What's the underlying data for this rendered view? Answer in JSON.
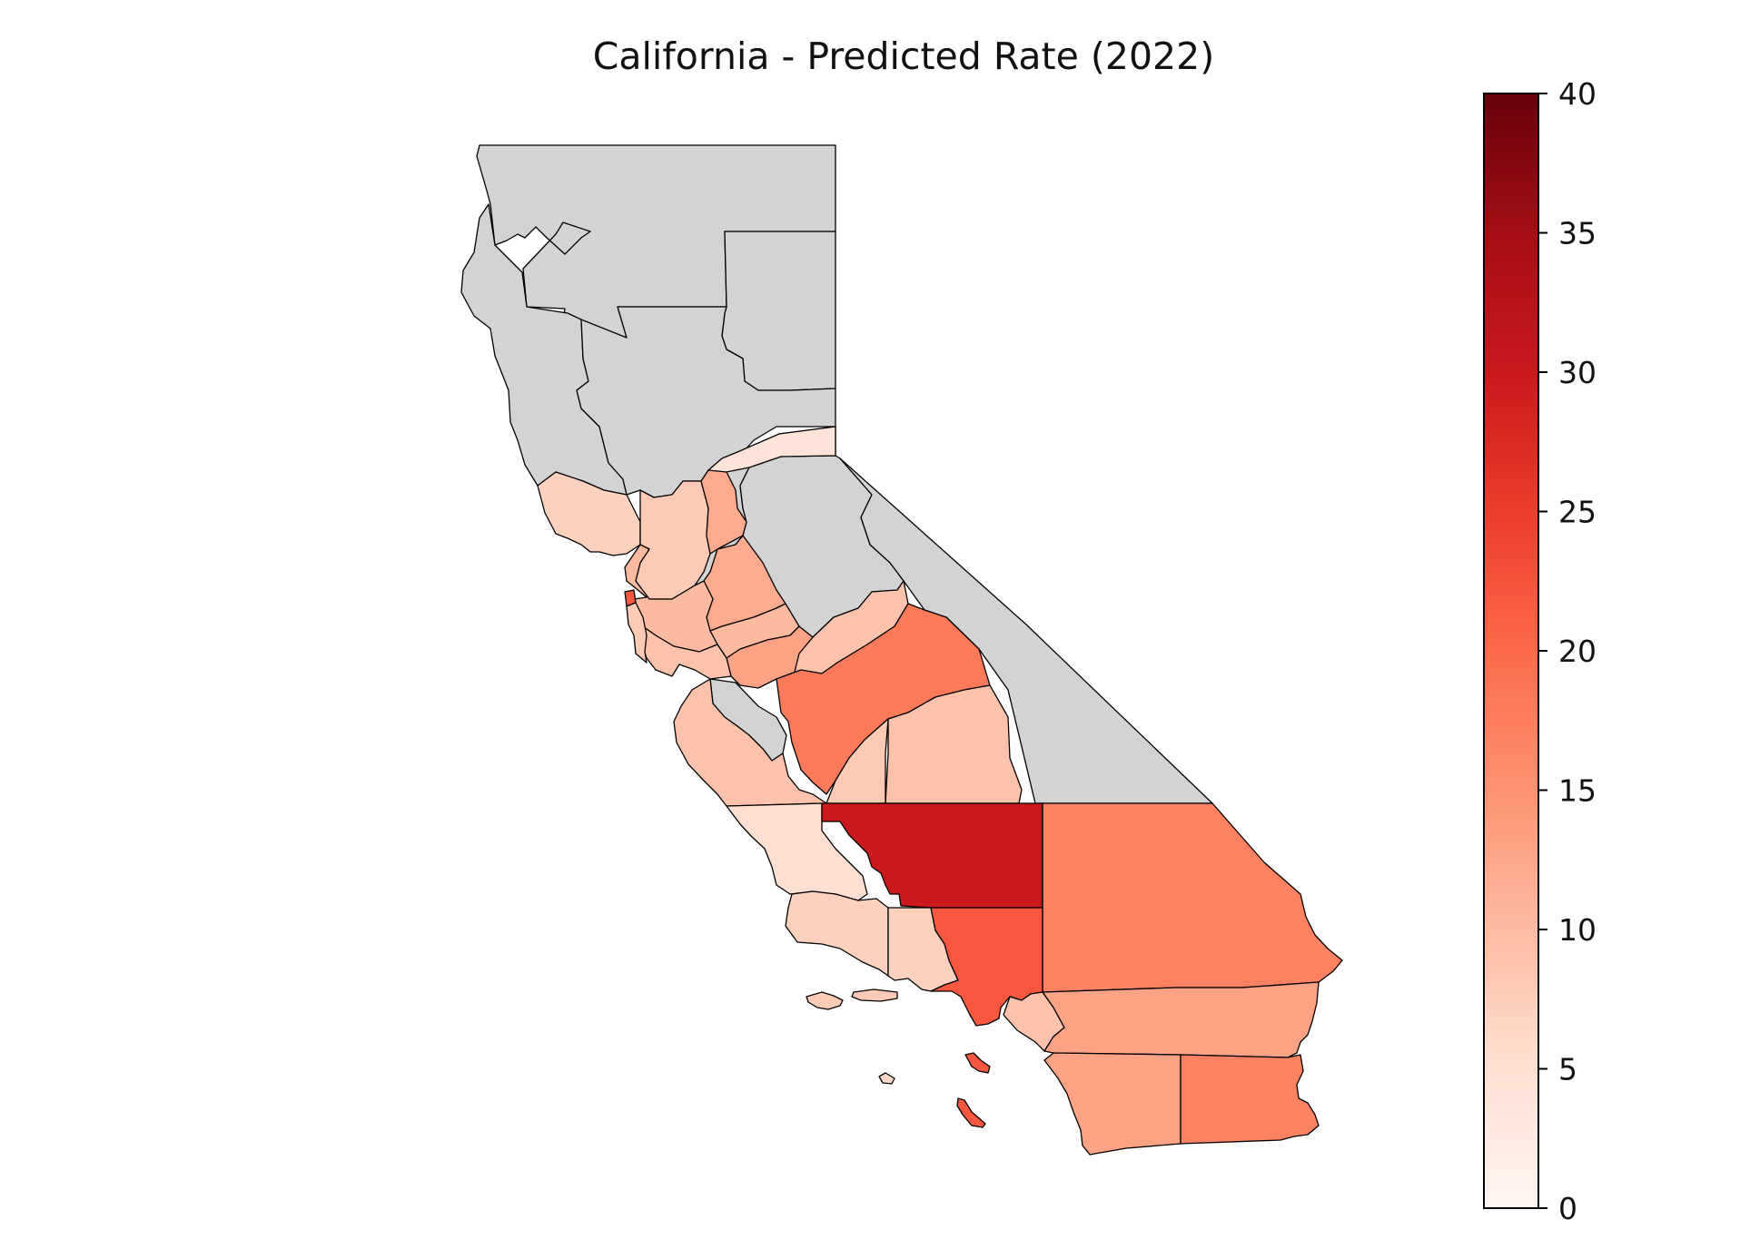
{
  "map": {
    "title": "California - Predicted Rate (2022)",
    "no_data_color": "#d3d3d3",
    "colormap": "Reds",
    "colorbar": {
      "min": 0,
      "max": 40,
      "ticks": [
        "0",
        "5",
        "10",
        "15",
        "20",
        "25",
        "30",
        "35",
        "40"
      ],
      "tick_values": [
        0,
        5,
        10,
        15,
        20,
        25,
        30,
        35,
        40
      ]
    },
    "regions": [
      {
        "id": "far-north",
        "rate": null
      },
      {
        "id": "north-coast",
        "rate": null
      },
      {
        "id": "northeast",
        "rate": null
      },
      {
        "id": "sacramento-valley",
        "rate": null
      },
      {
        "id": "sierra-north",
        "rate": null
      },
      {
        "id": "sierra-central",
        "rate": null
      },
      {
        "id": "east-sierra-desert",
        "rate": null
      },
      {
        "id": "monterey",
        "rate": null
      },
      {
        "id": "el-dorado-corner",
        "rate": 4
      },
      {
        "id": "sonoma-marin",
        "rate": 7
      },
      {
        "id": "yolo-solano",
        "rate": 8
      },
      {
        "id": "sacramento",
        "rate": 12
      },
      {
        "id": "san-joaquin",
        "rate": 12
      },
      {
        "id": "stanislaus",
        "rate": 10
      },
      {
        "id": "merced",
        "rate": 13
      },
      {
        "id": "madera",
        "rate": 9
      },
      {
        "id": "fresno",
        "rate": 18
      },
      {
        "id": "tulare",
        "rate": 9
      },
      {
        "id": "kings",
        "rate": 8
      },
      {
        "id": "bay-east",
        "rate": 10
      },
      {
        "id": "bay-south",
        "rate": 9
      },
      {
        "id": "san-francisco",
        "rate": 22
      },
      {
        "id": "san-mateo",
        "rate": 8
      },
      {
        "id": "san-luis-obispo",
        "rate": 9
      },
      {
        "id": "santa-barbara",
        "rate": 5
      },
      {
        "id": "ventura",
        "rate": 7
      },
      {
        "id": "ventura-east",
        "rate": 7
      },
      {
        "id": "kern",
        "rate": 30
      },
      {
        "id": "san-bernardino",
        "rate": 17
      },
      {
        "id": "los-angeles",
        "rate": 22
      },
      {
        "id": "orange",
        "rate": 9
      },
      {
        "id": "riverside",
        "rate": 13
      },
      {
        "id": "san-diego",
        "rate": 13
      },
      {
        "id": "imperial",
        "rate": 17
      },
      {
        "id": "channel-islands",
        "rate": 8
      },
      {
        "id": "santa-catalina",
        "rate": 22
      },
      {
        "id": "san-clemente",
        "rate": 22
      },
      {
        "id": "san-nicolas",
        "rate": 6
      }
    ]
  }
}
